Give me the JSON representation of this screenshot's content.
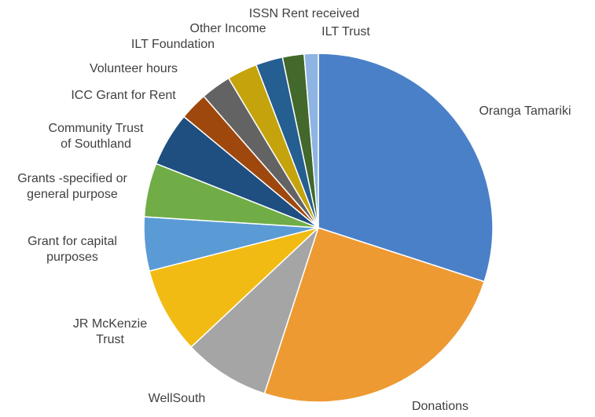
{
  "chart_data": {
    "type": "pie",
    "categories": [
      "Oranga Tamariki",
      "Donations",
      "WellSouth",
      "JR McKenzie Trust",
      "Grant for capital purposes",
      "Grants -specified or general purpose",
      "Community Trust of Southland",
      "ICC Grant for Rent",
      "Volunteer hours",
      "ILT Foundation",
      "Other Income",
      "ISSN Rent received",
      "ILT Trust"
    ],
    "values": [
      30,
      25,
      8,
      8,
      5,
      5,
      5,
      2.6,
      2.8,
      2.8,
      2.5,
      2,
      1.3
    ],
    "colors": [
      "#4a80c8",
      "#ed9a33",
      "#a5a5a5",
      "#f2bb14",
      "#5b9bd5",
      "#70ad47",
      "#1f4e80",
      "#9e480e",
      "#636363",
      "#c4a30c",
      "#255e91",
      "#43682b",
      "#8db4e2"
    ]
  }
}
